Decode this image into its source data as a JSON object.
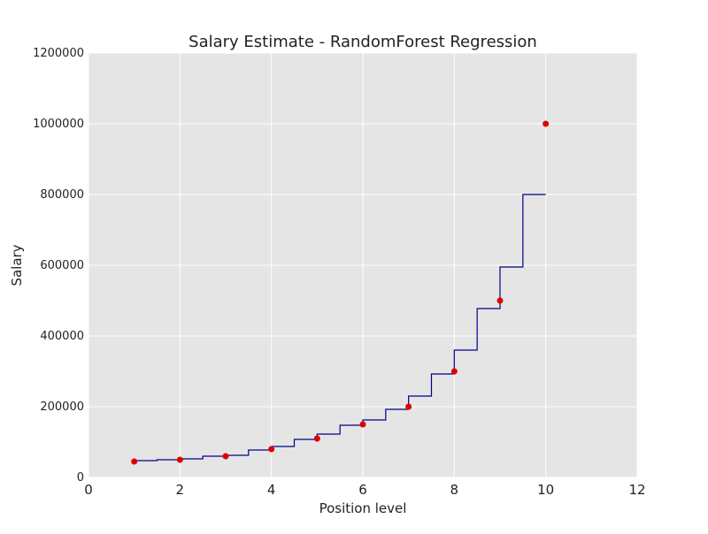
{
  "chart_data": {
    "type": "scatter",
    "title": "Salary Estimate - RandomForest Regression",
    "xlabel": "Position level",
    "ylabel": "Salary",
    "xlim": [
      0,
      12
    ],
    "xticks": [
      0,
      2,
      4,
      6,
      8,
      10,
      12
    ],
    "ylim": [
      0,
      1200000
    ],
    "yticks": [
      0,
      200000,
      400000,
      600000,
      800000,
      1000000,
      1200000
    ],
    "grid": true,
    "background": "#e5e5e5",
    "points": {
      "color": "#e00000",
      "x": [
        1,
        2,
        3,
        4,
        5,
        6,
        7,
        8,
        9,
        10
      ],
      "values": [
        45000,
        50000,
        60000,
        80000,
        110000,
        150000,
        200000,
        300000,
        500000,
        1000000
      ]
    },
    "step_line": {
      "color": "#00008b",
      "step": "post",
      "x": [
        1,
        1.5,
        2,
        2.5,
        3,
        3.5,
        4,
        4.5,
        5,
        5.5,
        6,
        6.5,
        7,
        7.5,
        8,
        8.5,
        9,
        9.5,
        10
      ],
      "values": [
        47500,
        50000,
        52500,
        60000,
        62500,
        77500,
        87500,
        107500,
        122500,
        147500,
        162500,
        192500,
        230000,
        292500,
        360000,
        477500,
        595000,
        800000,
        800000
      ]
    }
  }
}
